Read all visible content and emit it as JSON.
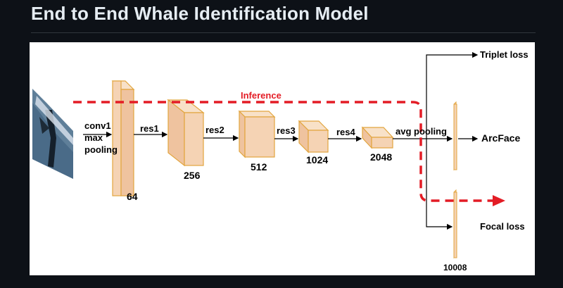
{
  "page": {
    "title": "End to End Whale Identification Model"
  },
  "diagram": {
    "inference_label": "Inference",
    "stem": {
      "op_line1": "conv1",
      "op_line2": "max",
      "op_line3": "pooling",
      "channels": "64"
    },
    "stages": [
      {
        "op": "res1",
        "channels": "256"
      },
      {
        "op": "res2",
        "channels": "512"
      },
      {
        "op": "res3",
        "channels": "1024"
      },
      {
        "op": "res4",
        "channels": "2048"
      }
    ],
    "pool_label": "avg pooling",
    "outputs": {
      "triplet": "Triplet loss",
      "arcface": "ArcFace",
      "focal": "Focal loss",
      "classes": "10008"
    },
    "colors": {
      "block_fill": "#f5d3b4",
      "block_top": "#f8e1c8",
      "block_side": "#efc39f",
      "block_stroke": "#e2a53e",
      "inference": "#e31c25",
      "background": "#0d1117",
      "heading": "#e6edf3"
    }
  }
}
